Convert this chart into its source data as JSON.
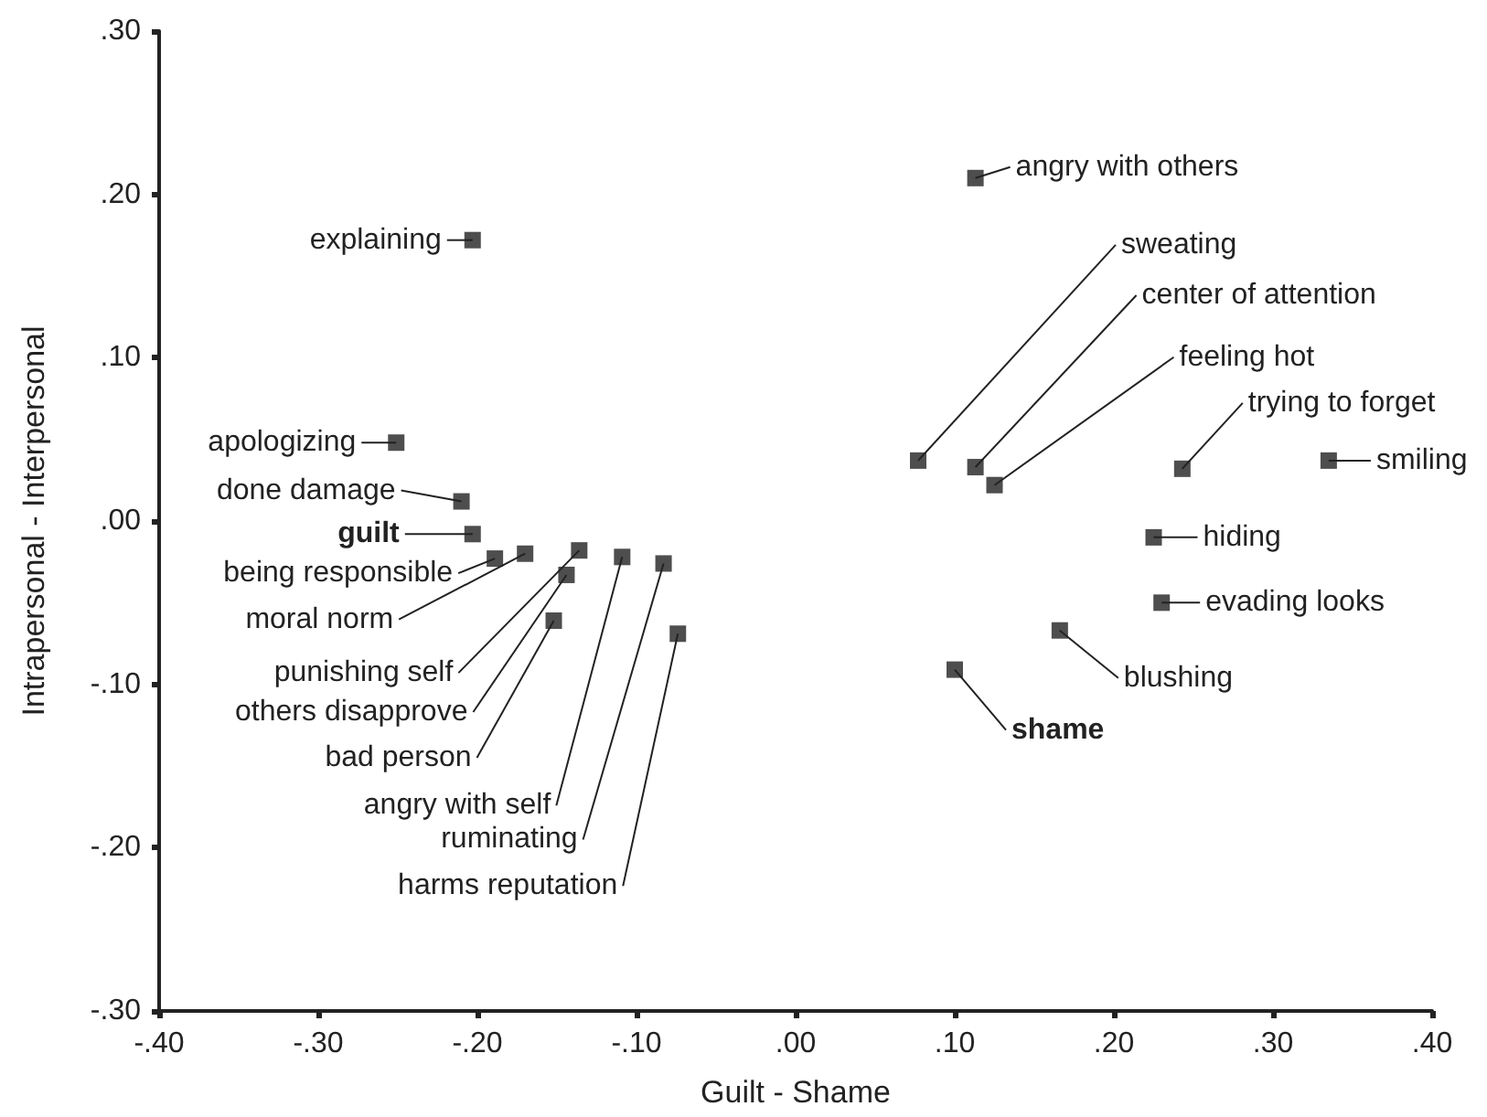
{
  "chart_data": {
    "type": "scatter",
    "xlabel": "Guilt - Shame",
    "ylabel": "Intrapersonal - Interpersonal",
    "x": [
      -0.203,
      -0.251,
      -0.21,
      -0.203,
      -0.189,
      -0.17,
      -0.136,
      -0.144,
      -0.152,
      -0.109,
      -0.083,
      -0.074,
      0.113,
      0.077,
      0.113,
      0.125,
      0.243,
      0.335,
      0.225,
      0.23,
      0.166,
      0.1
    ],
    "series": [
      {
        "color": "#222222",
        "values": [
          0.172,
          0.048,
          0.012,
          -0.008,
          -0.023,
          -0.02,
          -0.018,
          -0.033,
          -0.061,
          -0.022,
          -0.026,
          -0.069,
          0.21,
          0.037,
          0.033,
          0.022,
          0.032,
          0.037,
          -0.01,
          -0.05,
          -0.067,
          -0.091
        ]
      }
    ],
    "marker": "square",
    "grid": false,
    "xlim": [
      -0.4,
      0.4
    ],
    "ylim": [
      -0.3,
      0.3
    ],
    "xticks": [
      {
        "value": -0.4,
        "label": "-.40"
      },
      {
        "value": -0.3,
        "label": "-.30"
      },
      {
        "value": -0.2,
        "label": "-.20"
      },
      {
        "value": -0.1,
        "label": "-.10"
      },
      {
        "value": 0,
        "label": ".00"
      },
      {
        "value": 0.1,
        "label": ".10"
      },
      {
        "value": 0.2,
        "label": ".20"
      },
      {
        "value": 0.3,
        "label": ".30"
      },
      {
        "value": 0.4,
        "label": ".40"
      }
    ],
    "yticks": [
      {
        "value": -0.3,
        "label": "-.30"
      },
      {
        "value": -0.2,
        "label": "-.20"
      },
      {
        "value": -0.1,
        "label": "-.10"
      },
      {
        "value": 0,
        "label": ".00"
      },
      {
        "value": 0.1,
        "label": ".10"
      },
      {
        "value": 0.2,
        "label": ".20"
      },
      {
        "value": 0.3,
        "label": ".30"
      }
    ],
    "annotations": [
      {
        "text": "explaining",
        "x": -0.203,
        "y": 0.172
      },
      {
        "text": "apologizing",
        "x": -0.251,
        "y": 0.048
      },
      {
        "text": "done damage",
        "x": -0.21,
        "y": 0.012
      },
      {
        "text": "guilt",
        "x": -0.203,
        "y": -0.008
      },
      {
        "text": "being responsible",
        "x": -0.189,
        "y": -0.023
      },
      {
        "text": "moral norm",
        "x": -0.17,
        "y": -0.02
      },
      {
        "text": "punishing self",
        "x": -0.136,
        "y": -0.018
      },
      {
        "text": "others disapprove",
        "x": -0.144,
        "y": -0.033
      },
      {
        "text": "bad person",
        "x": -0.152,
        "y": -0.061
      },
      {
        "text": "angry with self",
        "x": -0.109,
        "y": -0.022
      },
      {
        "text": "ruminating",
        "x": -0.083,
        "y": -0.026
      },
      {
        "text": "harms reputation",
        "x": -0.074,
        "y": -0.069
      },
      {
        "text": "angry with others",
        "x": 0.113,
        "y": 0.21
      },
      {
        "text": "sweating",
        "x": 0.077,
        "y": 0.037
      },
      {
        "text": "center of attention",
        "x": 0.113,
        "y": 0.033
      },
      {
        "text": "feeling hot",
        "x": 0.125,
        "y": 0.022
      },
      {
        "text": "trying to forget",
        "x": 0.243,
        "y": 0.032
      },
      {
        "text": "smiling",
        "x": 0.335,
        "y": 0.037
      },
      {
        "text": "hiding",
        "x": 0.225,
        "y": -0.01
      },
      {
        "text": "evading looks",
        "x": 0.23,
        "y": -0.05
      },
      {
        "text": "blushing",
        "x": 0.166,
        "y": -0.067
      },
      {
        "text": "shame",
        "x": 0.1,
        "y": -0.091
      }
    ]
  }
}
